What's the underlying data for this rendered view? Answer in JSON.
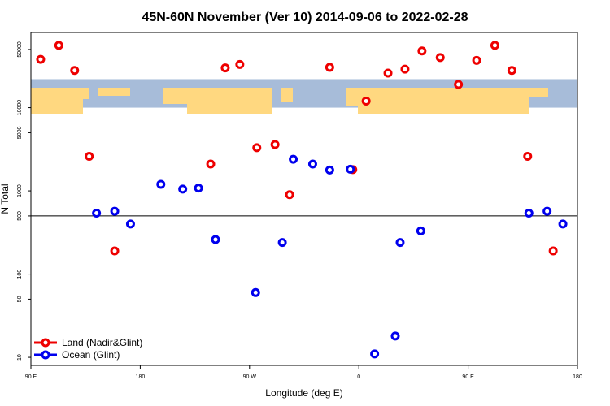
{
  "chart_data": {
    "type": "scatter",
    "title": "45N-60N November (Ver 10)   2014-09-06 to 2022-02-28",
    "xlabel": "Longitude (deg E)",
    "ylabel": "N Total",
    "x_axis": {
      "range": [
        90,
        540
      ],
      "ticks": [
        {
          "value": 90,
          "label": "90 E"
        },
        {
          "value": 180,
          "label": "180"
        },
        {
          "value": 270,
          "label": "90 W"
        },
        {
          "value": 360,
          "label": "0"
        },
        {
          "value": 450,
          "label": "90 E"
        },
        {
          "value": 540,
          "label": "180"
        }
      ]
    },
    "y_axis": {
      "scale": "log",
      "range": [
        8,
        80000
      ],
      "ticks": [
        10,
        50,
        100,
        500,
        1000,
        5000,
        10000,
        50000
      ],
      "reference_line": 500
    },
    "map_band": {
      "y_range": [
        10000,
        22000
      ],
      "ocean_color": "#a7bcd9",
      "land_color": "#ffd880"
    },
    "series": [
      {
        "name": "Land (Nadir&Glint)",
        "color": "#ee0000",
        "points": [
          {
            "x": 98,
            "y": 38000
          },
          {
            "x": 113,
            "y": 56000
          },
          {
            "x": 126,
            "y": 28000
          },
          {
            "x": 138,
            "y": 2600
          },
          {
            "x": 159,
            "y": 190
          },
          {
            "x": 238,
            "y": 2100
          },
          {
            "x": 250,
            "y": 30000
          },
          {
            "x": 262,
            "y": 33000
          },
          {
            "x": 276,
            "y": 3300
          },
          {
            "x": 291,
            "y": 3600
          },
          {
            "x": 303,
            "y": 900
          },
          {
            "x": 336,
            "y": 30500
          },
          {
            "x": 355,
            "y": 1800
          },
          {
            "x": 366,
            "y": 12000
          },
          {
            "x": 384,
            "y": 26000
          },
          {
            "x": 398,
            "y": 29000
          },
          {
            "x": 412,
            "y": 48000
          },
          {
            "x": 427,
            "y": 40000
          },
          {
            "x": 442,
            "y": 19000
          },
          {
            "x": 457,
            "y": 37000
          },
          {
            "x": 472,
            "y": 56000
          },
          {
            "x": 486,
            "y": 28000
          },
          {
            "x": 499,
            "y": 2600
          },
          {
            "x": 520,
            "y": 190
          }
        ]
      },
      {
        "name": "Ocean (Glint)",
        "color": "#0000ee",
        "points": [
          {
            "x": 144,
            "y": 540
          },
          {
            "x": 159,
            "y": 570
          },
          {
            "x": 172,
            "y": 400
          },
          {
            "x": 197,
            "y": 1200
          },
          {
            "x": 215,
            "y": 1050
          },
          {
            "x": 228,
            "y": 1080
          },
          {
            "x": 242,
            "y": 260
          },
          {
            "x": 275,
            "y": 60
          },
          {
            "x": 297,
            "y": 240
          },
          {
            "x": 306,
            "y": 2400
          },
          {
            "x": 322,
            "y": 2100
          },
          {
            "x": 336,
            "y": 1780
          },
          {
            "x": 353,
            "y": 1820
          },
          {
            "x": 373,
            "y": 11
          },
          {
            "x": 390,
            "y": 18
          },
          {
            "x": 394,
            "y": 240
          },
          {
            "x": 411,
            "y": 330
          },
          {
            "x": 500,
            "y": 540
          },
          {
            "x": 515,
            "y": 570
          },
          {
            "x": 528,
            "y": 400
          }
        ]
      }
    ],
    "legend": {
      "position": "bottom-left"
    }
  }
}
